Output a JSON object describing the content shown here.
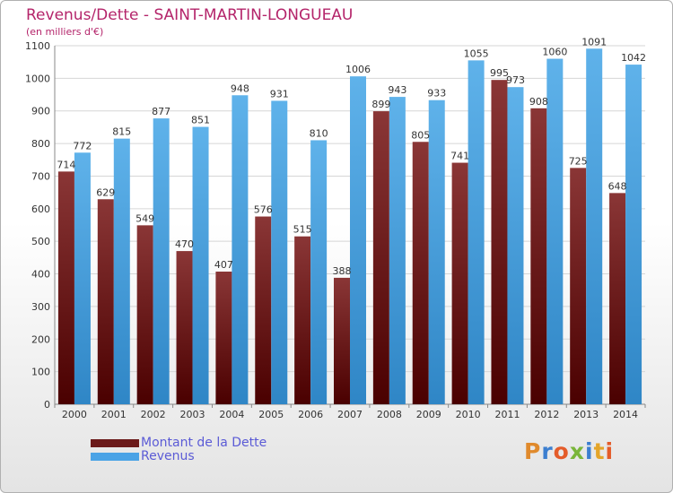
{
  "title": "Revenus/Dette - SAINT-MARTIN-LONGUEAU",
  "subtitle": "(en milliers d'€)",
  "logo": "Proxiti",
  "colors": {
    "dette_top": "#8a3636",
    "dette_bottom": "#4a0000",
    "revenus_top": "#5fb2ea",
    "revenus_bottom": "#2f86c6",
    "title": "#b4246a",
    "legend_text": "#5b5bd6"
  },
  "legend": [
    {
      "label": "Montant de la Dette",
      "color": "#6b1a1a"
    },
    {
      "label": "Revenus",
      "color": "#4aa3e6"
    }
  ],
  "chart_data": {
    "type": "bar",
    "categories": [
      "2000",
      "2001",
      "2002",
      "2003",
      "2004",
      "2005",
      "2006",
      "2007",
      "2008",
      "2009",
      "2010",
      "2011",
      "2012",
      "2013",
      "2014"
    ],
    "series": [
      {
        "name": "Montant de la Dette",
        "values": [
          714,
          629,
          549,
          470,
          407,
          576,
          515,
          388,
          899,
          805,
          741,
          995,
          908,
          725,
          648
        ]
      },
      {
        "name": "Revenus",
        "values": [
          772,
          815,
          877,
          851,
          948,
          931,
          810,
          1006,
          943,
          933,
          1055,
          973,
          1060,
          1091,
          1042
        ]
      }
    ],
    "ylim": [
      0,
      1100
    ],
    "yticks": [
      0,
      100,
      200,
      300,
      400,
      500,
      600,
      700,
      800,
      900,
      1000,
      1100
    ],
    "grid": true,
    "legend_position": "bottom-left"
  }
}
